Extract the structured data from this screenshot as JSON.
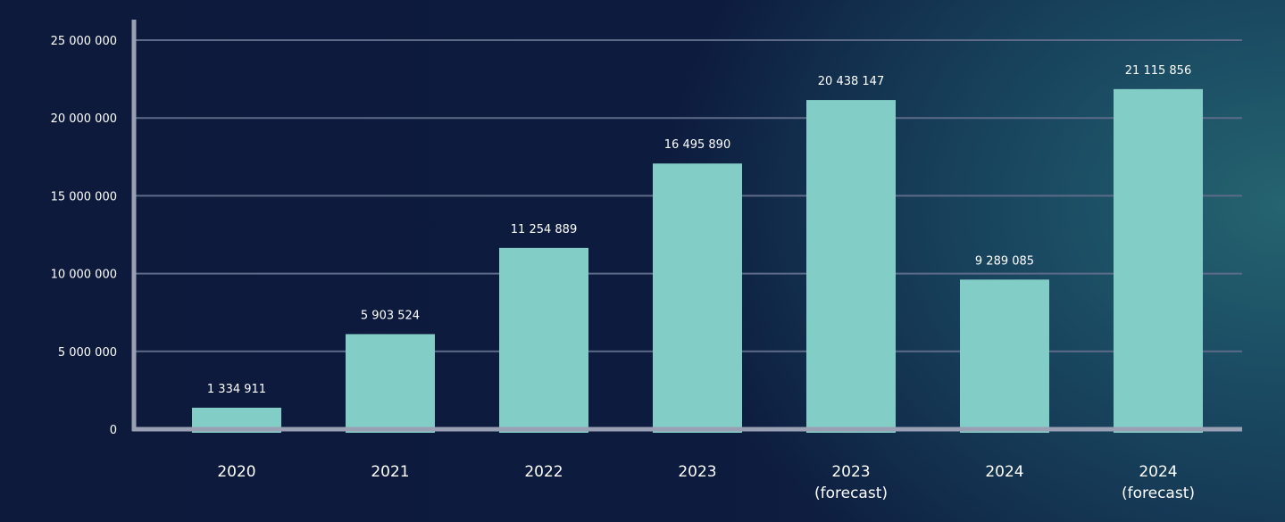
{
  "chart_data": {
    "type": "bar",
    "title": "",
    "xlabel": "",
    "ylabel": "",
    "ylim": [
      0,
      25000000
    ],
    "yticks": [
      0,
      5000000,
      10000000,
      15000000,
      20000000,
      25000000
    ],
    "ytick_labels": [
      "0",
      "5 000 000",
      "10 000 000",
      "15 000 000",
      "20 000 000",
      "25 000 000"
    ],
    "grid": true,
    "categories": [
      [
        "2020"
      ],
      [
        "2021"
      ],
      [
        "2022"
      ],
      [
        "2023"
      ],
      [
        "2023",
        "(forecast)"
      ],
      [
        "2024"
      ],
      [
        "2024",
        "(forecast)"
      ]
    ],
    "values": [
      1334911,
      5903524,
      11254889,
      16495890,
      20438147,
      9289085,
      21115856
    ],
    "value_labels": [
      "1 334 911",
      "5 903 524",
      "11 254 889",
      "16 495 890",
      "20 438 147",
      "9 289 085",
      "21 115 856"
    ],
    "colors": {
      "bar": "#82cdc5",
      "axis": "#9aa0b4",
      "grid": "#5d6b88",
      "text": "#ffffff"
    }
  }
}
